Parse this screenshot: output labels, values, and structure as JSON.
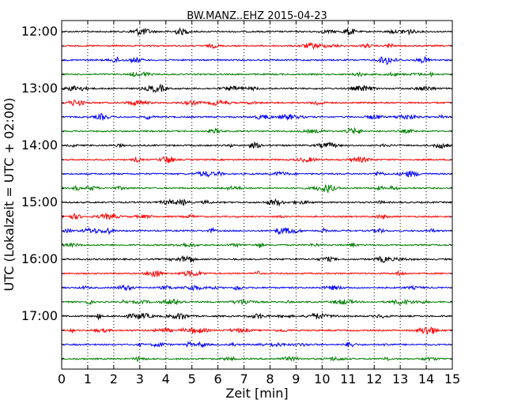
{
  "chart_data": {
    "type": "line",
    "title": "BW.MANZ..EHZ 2015-04-23",
    "xlabel": "Zeit  [min]",
    "ylabel": "UTC (Lokalzeit = UTC + 02:00)",
    "xlim": [
      0,
      15
    ],
    "x_ticks": [
      "0",
      "1",
      "2",
      "3",
      "4",
      "5",
      "6",
      "7",
      "8",
      "9",
      "10",
      "11",
      "12",
      "13",
      "14",
      "15"
    ],
    "y_ticks": [
      "12:00",
      "13:00",
      "14:00",
      "15:00",
      "16:00",
      "17:00"
    ],
    "grid": "vertical dotted at each minute",
    "trace_colors": [
      "#000000",
      "#ff0000",
      "#0000ff",
      "#008000"
    ],
    "traces": [
      {
        "start": "12:00",
        "color": "#000000"
      },
      {
        "start": "12:15",
        "color": "#ff0000"
      },
      {
        "start": "12:30",
        "color": "#0000ff"
      },
      {
        "start": "12:45",
        "color": "#008000"
      },
      {
        "start": "13:00",
        "color": "#000000"
      },
      {
        "start": "13:15",
        "color": "#ff0000"
      },
      {
        "start": "13:30",
        "color": "#0000ff"
      },
      {
        "start": "13:45",
        "color": "#008000"
      },
      {
        "start": "14:00",
        "color": "#000000"
      },
      {
        "start": "14:15",
        "color": "#ff0000"
      },
      {
        "start": "14:30",
        "color": "#0000ff"
      },
      {
        "start": "14:45",
        "color": "#008000"
      },
      {
        "start": "15:00",
        "color": "#000000"
      },
      {
        "start": "15:15",
        "color": "#ff0000"
      },
      {
        "start": "15:30",
        "color": "#0000ff"
      },
      {
        "start": "15:45",
        "color": "#008000"
      },
      {
        "start": "16:00",
        "color": "#000000"
      },
      {
        "start": "16:15",
        "color": "#ff0000"
      },
      {
        "start": "16:30",
        "color": "#0000ff"
      },
      {
        "start": "16:45",
        "color": "#008000"
      },
      {
        "start": "17:00",
        "color": "#000000"
      },
      {
        "start": "17:15",
        "color": "#ff0000"
      },
      {
        "start": "17:30",
        "color": "#0000ff"
      },
      {
        "start": "17:45",
        "color": "#008000"
      }
    ]
  }
}
